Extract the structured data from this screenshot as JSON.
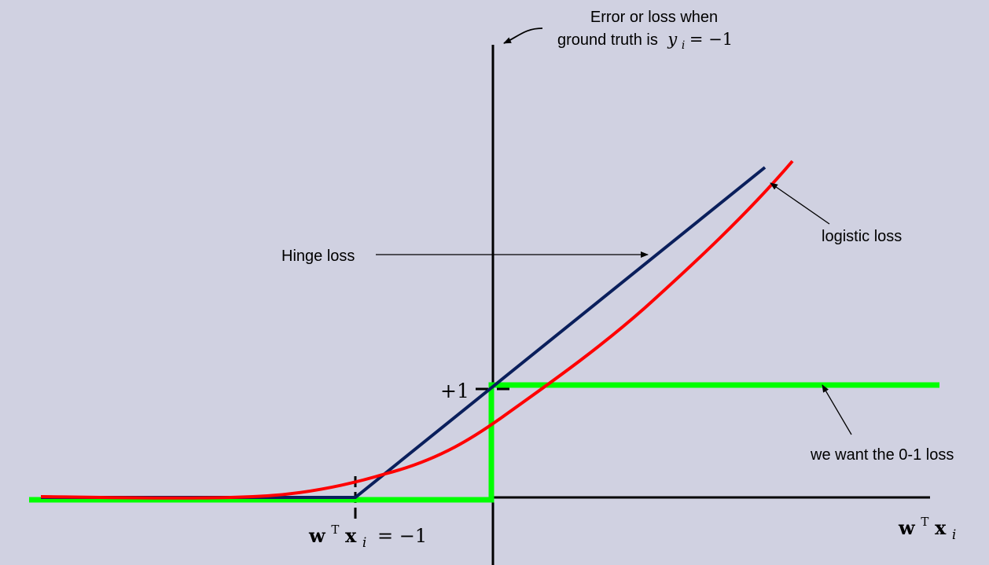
{
  "annotations": {
    "y_axis_title_line1": "Error or loss when",
    "y_axis_title_line2": "ground truth is",
    "y_axis_title_math_var": "y",
    "y_axis_title_math_sub": "i",
    "y_axis_title_math_rest": " = −1",
    "hinge_label": "Hinge loss",
    "logistic_label": "logistic loss",
    "zero_one_label": "we want the 0-1 loss",
    "plus_one_label": "+1",
    "tick_label_w": "w",
    "tick_label_T": "T",
    "tick_label_x": "x",
    "tick_label_i": "i",
    "tick_label_rest": " = −1",
    "x_axis_w": "w",
    "x_axis_T": "T",
    "x_axis_x": "x",
    "x_axis_i": "i"
  },
  "colors": {
    "background": "#d0d1e1",
    "axes": "#000000",
    "hinge": "#0a1f5c",
    "logistic": "#ff0000",
    "zero_one": "#00ff00"
  }
}
